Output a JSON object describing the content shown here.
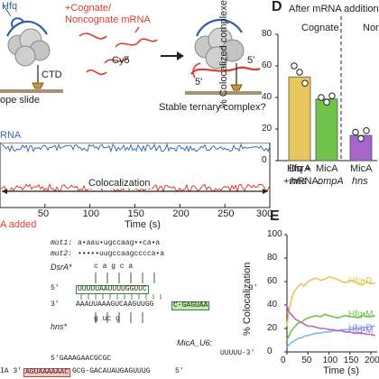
{
  "panel_a": {
    "hfq_label": "Hfq",
    "mrna_label_line1": "+Cognate/",
    "mrna_label_line2": "Noncognate mRNA",
    "cy5": "Cy5",
    "ctd": "CTD",
    "slide": "ope slide",
    "five_prime_a": "5'",
    "five_prime_b": "5'",
    "question": "Stable ternary complex?"
  },
  "panel_b": {
    "rna_label": "RNA",
    "coloc_label": "Colocalization",
    "added_label": "A added",
    "xlabel": "Time (s)",
    "xticks": [
      "50",
      "100",
      "150",
      "200",
      "250",
      "300"
    ]
  },
  "panel_c": {
    "mut1_label": "mut1:",
    "mut1_seq": "a•aau•ugccaag••ca•a",
    "mut2_label": "mut2:",
    "mut2_seq": "•••••uugccaagcccca•a",
    "dsra_label": "DsrA*",
    "top_subs": "c  a g    c  a",
    "hns_label": "hns*",
    "hns_subs": "g   uc    g",
    "five_prime": "5'",
    "three_prime": "3'",
    "dsra_seq": "UUUUUAAUUUUGGUUC",
    "hns_seq": "AAAUUAAAGUCAAGUUGG",
    "green_box": "C-GAGUAA",
    "mica_label": "MicA_U6:",
    "mica_tail": "UUUUU-3'",
    "mica_seq": "5'GAAAGAACGCGC",
    "bottom_prefix": "IA 3'",
    "bottom_box": "AGUAAAAAAC",
    "bottom_seq": "GCG-GACAUAUGAGUUUG",
    "bottom_end": "5'"
  },
  "panel_d": {
    "letter": "D",
    "header": "After mRNA addition",
    "group_cognate": "Cognate",
    "group_noncognate": "Non",
    "row1_label": "Hfq +",
    "row2_label": "+mRNA:",
    "bar_names": [
      "DsrA",
      "MicA",
      "MicA"
    ],
    "bar_mrnas": [
      "hns",
      "ompA",
      "hns"
    ]
  },
  "panel_e": {
    "letter": "E",
    "trace_labels": [
      "Hfq•D",
      "Hfq•M",
      "Hfq•D",
      "Hfq•M"
    ]
  },
  "chart_data": [
    {
      "type": "line",
      "panel": "B",
      "xlabel": "Time (s)",
      "xlim": [
        0,
        300
      ],
      "series": [
        {
          "name": "",
          "color": "#3a6fb5",
          "level": 0.78
        },
        {
          "name": "",
          "color": "#e03a2f",
          "level": 0.22
        }
      ],
      "annotation": "Colocalization"
    },
    {
      "type": "bar",
      "panel": "D",
      "ylabel": "% Colocalized complexes",
      "ylim": [
        0,
        80
      ],
      "yticks": [
        0,
        20,
        40,
        60,
        80
      ],
      "categories": [
        "DsrA/hns",
        "MicA/ompA",
        "MicA/hns"
      ],
      "values": [
        53,
        39,
        16
      ],
      "colors": [
        "#e7c65b",
        "#6fc24a",
        "#a765c9"
      ],
      "points": [
        [
          60,
          56,
          49
        ],
        [
          40,
          37,
          41
        ],
        [
          18,
          14,
          19
        ]
      ]
    },
    {
      "type": "line",
      "panel": "E",
      "xlabel": "Time (s)",
      "ylabel": "% Colocalization",
      "xlim": [
        0,
        215
      ],
      "ylim": [
        0,
        100
      ],
      "xticks": [
        0,
        50,
        100,
        150,
        200
      ],
      "yticks": [
        0,
        20,
        40,
        60,
        80,
        100
      ],
      "series": [
        {
          "name": "Hfq•D",
          "color": "#e7c65b",
          "x": [
            0,
            5,
            10,
            15,
            20,
            25,
            30,
            35,
            40,
            45,
            50,
            60,
            70,
            80,
            90,
            100,
            110,
            120,
            130,
            140,
            150,
            160,
            170,
            180,
            190,
            200,
            210
          ],
          "y": [
            22,
            35,
            44,
            50,
            53,
            55,
            57,
            58,
            56,
            58,
            60,
            62,
            63,
            61,
            62,
            64,
            63,
            62,
            60,
            59,
            61,
            60,
            58,
            57,
            60,
            58,
            59
          ]
        },
        {
          "name": "Hfq•M",
          "color": "#6fc24a",
          "x": [
            0,
            5,
            10,
            15,
            20,
            25,
            30,
            35,
            40,
            45,
            50,
            60,
            70,
            80,
            90,
            100,
            110,
            120,
            130,
            140,
            150,
            160,
            170,
            180,
            190,
            200,
            210
          ],
          "y": [
            10,
            14,
            18,
            20,
            22,
            24,
            25,
            25,
            27,
            28,
            29,
            30,
            31,
            30,
            32,
            31,
            30,
            29,
            30,
            31,
            30,
            30,
            29,
            31,
            30,
            30,
            31
          ]
        },
        {
          "name": "Hfq•D",
          "color": "#7bbde0",
          "x": [
            0,
            5,
            10,
            15,
            20,
            25,
            30,
            35,
            40,
            45,
            50,
            60,
            70,
            80,
            90,
            100,
            110,
            120,
            130,
            140,
            150,
            160,
            170,
            180,
            190,
            200,
            210
          ],
          "y": [
            4,
            6,
            8,
            9,
            10,
            11,
            12,
            12,
            13,
            14,
            14,
            15,
            16,
            16,
            17,
            17,
            18,
            18,
            19,
            19,
            19,
            20,
            20,
            21,
            21,
            22,
            22
          ]
        },
        {
          "name": "Hfq•M",
          "color": "#b06cc9",
          "x": [
            0,
            5,
            10,
            15,
            20,
            25,
            30,
            35,
            40,
            45,
            50,
            60,
            70,
            80,
            90,
            100,
            110,
            120,
            130,
            140,
            150,
            160,
            170,
            180,
            190,
            200,
            210
          ],
          "y": [
            40,
            34,
            32,
            30,
            28,
            27,
            26,
            25,
            24,
            23,
            22,
            22,
            21,
            20,
            20,
            19,
            19,
            18,
            18,
            17,
            17,
            16,
            16,
            16,
            15,
            15,
            14
          ]
        }
      ]
    }
  ]
}
